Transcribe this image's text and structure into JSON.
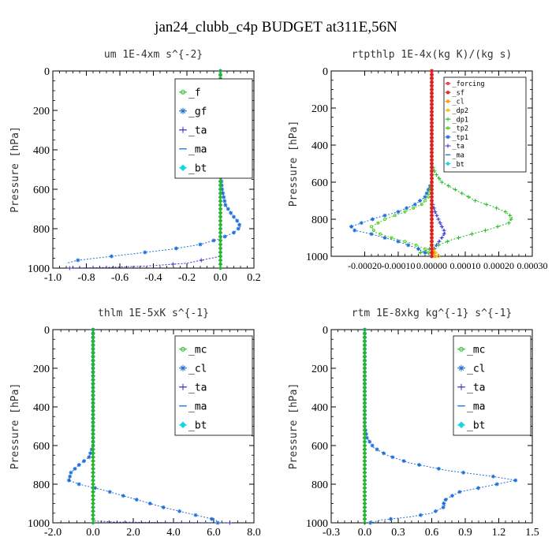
{
  "figure_title": "jan24_clubb_c4p  BUDGET at311E,56N",
  "colors": {
    "axes": "#000000",
    "green": "#22bb22",
    "blue": "#1e6fd9",
    "navy": "#3030c8",
    "cyan": "#17d5e0",
    "red": "#e02020",
    "orange": "#ff9900",
    "yellow": "#e6c000",
    "lime": "#4ccf1f"
  },
  "chart_data": [
    {
      "type": "line",
      "title": "um   1E-4xm s^{-2}",
      "ylabel": "Pressure [hPa]",
      "xlim": [
        -1.0,
        0.2
      ],
      "ylim": [
        1000,
        0
      ],
      "xticks": [
        -1.0,
        -0.8,
        -0.6,
        -0.4,
        -0.2,
        0.0,
        0.2
      ],
      "xtick_labels": [
        "-1.0",
        "-0.8",
        "-0.6",
        "-0.4",
        "-0.2",
        "0.0",
        "0.2"
      ],
      "yticks": [
        0,
        200,
        400,
        600,
        800,
        1000
      ],
      "ytick_labels": [
        "0",
        "200",
        "400",
        "600",
        "800",
        "1000"
      ],
      "legend_position": "top-right",
      "series": [
        {
          "name": "_f",
          "color": "#22bb22",
          "marker": "circle",
          "x": [
            0.0,
            0.0
          ],
          "y": [
            0,
            1000
          ]
        },
        {
          "name": "_gf",
          "color": "#1e6fd9",
          "marker": "star",
          "x": [
            0.0,
            0.0,
            0.0,
            0.0,
            0.0,
            0.0,
            0.01,
            0.03,
            0.07,
            0.1,
            0.12,
            0.08,
            0.0,
            -0.12,
            -0.3,
            -0.5,
            -0.7,
            -0.85,
            -0.92
          ],
          "y": [
            0,
            100,
            200,
            300,
            400,
            500,
            600,
            680,
            730,
            760,
            790,
            820,
            850,
            880,
            905,
            925,
            945,
            960,
            975
          ]
        },
        {
          "name": "_ta",
          "color": "#3030c8",
          "marker": "plus",
          "x": [
            0.0,
            0.0,
            0.0,
            0.0,
            -0.2,
            -0.45,
            -0.7,
            -0.9
          ],
          "y": [
            0,
            400,
            800,
            940,
            975,
            990,
            997,
            1000
          ]
        },
        {
          "name": "_ma",
          "color": "#1e6fd9",
          "marker": "dash",
          "x": [
            0.0,
            0.0
          ],
          "y": [
            0,
            1000
          ]
        },
        {
          "name": "_bt",
          "color": "#17d5e0",
          "marker": "diamond",
          "x": [
            0.0,
            0.0
          ],
          "y": [
            0,
            1000
          ]
        }
      ]
    },
    {
      "type": "line",
      "title": "rtpthlp   1E-4x(kg K)/(kg s)",
      "ylabel": "Pressure [hPa]",
      "xlim": [
        -0.0003,
        0.0003
      ],
      "ylim": [
        1000,
        0
      ],
      "xticks": [
        -0.0002,
        -0.0001,
        0.0,
        0.0001,
        0.0002,
        0.0003
      ],
      "xtick_labels": [
        "-0.00020",
        "-0.00010",
        "0.00000",
        "0.00010",
        "0.00020",
        "0.00030"
      ],
      "yticks": [
        0,
        200,
        400,
        600,
        800,
        1000
      ],
      "ytick_labels": [
        "0",
        "200",
        "400",
        "600",
        "800",
        "1000"
      ],
      "legend_position": "top-right",
      "series": [
        {
          "name": "_forcing",
          "color": "#e02020",
          "marker": "circle",
          "x": [
            0.0,
            0.0
          ],
          "y": [
            0,
            1000
          ]
        },
        {
          "name": "_sf",
          "color": "#e02020",
          "marker": "star",
          "x": [
            0.0,
            0.0
          ],
          "y": [
            0,
            1000
          ]
        },
        {
          "name": "_cl",
          "color": "#ff9900",
          "marker": "star",
          "x": [
            0.0,
            0.0,
            1e-05
          ],
          "y": [
            0,
            950,
            1000
          ]
        },
        {
          "name": "_dp2",
          "color": "#e6c000",
          "marker": "circle",
          "x": [
            0.0,
            0.0,
            2e-05
          ],
          "y": [
            0,
            950,
            1000
          ]
        },
        {
          "name": "_dp1",
          "color": "#22bb22",
          "marker": "plus",
          "x": [
            0.0,
            0.0,
            1e-05,
            3e-05,
            8e-05,
            0.00013,
            0.00018,
            0.00022,
            0.00024,
            0.00023,
            0.00018,
            0.00012,
            6e-05,
            2e-05,
            -4e-05
          ],
          "y": [
            0,
            500,
            550,
            600,
            650,
            700,
            730,
            760,
            790,
            820,
            850,
            880,
            910,
            940,
            985
          ]
        },
        {
          "name": "_tp2",
          "color": "#4ccf1f",
          "marker": "circle",
          "x": [
            0.0,
            0.0,
            -1e-05,
            -3e-05,
            -8e-05,
            -0.00014,
            -0.00018,
            -0.00017,
            -0.00012,
            -6e-05,
            -2e-05,
            0.0
          ],
          "y": [
            0,
            600,
            680,
            720,
            760,
            800,
            840,
            870,
            900,
            930,
            960,
            1000
          ]
        },
        {
          "name": "_tp1",
          "color": "#1e6fd9",
          "marker": "star",
          "x": [
            0.0,
            0.0,
            -2e-05,
            -5e-05,
            -0.0001,
            -0.00016,
            -0.00021,
            -0.00024,
            -0.00023,
            -0.00018,
            -0.0001,
            -4e-05,
            0.0
          ],
          "y": [
            0,
            600,
            680,
            720,
            760,
            790,
            820,
            840,
            860,
            880,
            920,
            960,
            1000
          ]
        },
        {
          "name": "_ta",
          "color": "#3030c8",
          "marker": "plus",
          "x": [
            0.0,
            0.0,
            1e-05,
            2e-05,
            3e-05,
            4e-05,
            3e-05,
            1e-05,
            0.0
          ],
          "y": [
            0,
            700,
            760,
            800,
            840,
            870,
            900,
            950,
            1000
          ]
        },
        {
          "name": "_ma",
          "color": "#1e6fd9",
          "marker": "dash",
          "x": [
            0.0,
            0.0
          ],
          "y": [
            0,
            1000
          ]
        },
        {
          "name": "_bt",
          "color": "#17d5e0",
          "marker": "diamond",
          "x": [
            0.0,
            0.0
          ],
          "y": [
            0,
            1000
          ]
        }
      ]
    },
    {
      "type": "line",
      "title": "thlm   1E-5xK s^{-1}",
      "ylabel": "Pressure [hPa]",
      "xlim": [
        -2.0,
        8.0
      ],
      "ylim": [
        1000,
        0
      ],
      "xticks": [
        -2.0,
        0.0,
        2.0,
        4.0,
        6.0,
        8.0
      ],
      "xtick_labels": [
        "-2.0",
        "0.0",
        "2.0",
        "4.0",
        "6.0",
        "8.0"
      ],
      "yticks": [
        0,
        200,
        400,
        600,
        800,
        1000
      ],
      "ytick_labels": [
        "0",
        "200",
        "400",
        "600",
        "800",
        "1000"
      ],
      "legend_position": "top-right",
      "series": [
        {
          "name": "_mc",
          "color": "#22bb22",
          "marker": "circle",
          "x": [
            0.0,
            0.0
          ],
          "y": [
            0,
            1000
          ]
        },
        {
          "name": "_cl",
          "color": "#1e6fd9",
          "marker": "star",
          "x": [
            0.0,
            0.0,
            -0.2,
            -0.7,
            -1.1,
            -1.2,
            -0.7,
            0.5,
            1.5,
            2.5,
            3.5,
            4.5,
            5.5,
            6.1,
            6.2
          ],
          "y": [
            0,
            600,
            660,
            700,
            740,
            780,
            800,
            830,
            860,
            890,
            920,
            945,
            970,
            985,
            1000
          ]
        },
        {
          "name": "_ta",
          "color": "#3030c8",
          "marker": "plus",
          "x": [
            0.0,
            0.0,
            1.0,
            3.0,
            5.0,
            6.8
          ],
          "y": [
            0,
            990,
            996,
            998,
            999,
            1000
          ]
        },
        {
          "name": "_ma",
          "color": "#1e6fd9",
          "marker": "dash",
          "x": [
            0.0,
            0.0
          ],
          "y": [
            0,
            1000
          ]
        },
        {
          "name": "_bt",
          "color": "#17d5e0",
          "marker": "diamond",
          "x": [
            0.0,
            0.0
          ],
          "y": [
            0,
            1000
          ]
        }
      ]
    },
    {
      "type": "line",
      "title": "rtm   1E-8xkg kg^{-1} s^{-1}",
      "ylabel": "Pressure [hPa]",
      "xlim": [
        -0.3,
        1.5
      ],
      "ylim": [
        1000,
        0
      ],
      "xticks": [
        -0.3,
        0.0,
        0.3,
        0.6,
        0.9,
        1.2,
        1.5
      ],
      "xtick_labels": [
        "-0.3",
        "0.0",
        "0.3",
        "0.6",
        "0.9",
        "1.2",
        "1.5"
      ],
      "yticks": [
        0,
        200,
        400,
        600,
        800,
        1000
      ],
      "ytick_labels": [
        "0",
        "200",
        "400",
        "600",
        "800",
        "1000"
      ],
      "legend_position": "top-right",
      "series": [
        {
          "name": "_mc",
          "color": "#22bb22",
          "marker": "circle",
          "x": [
            0.0,
            0.0
          ],
          "y": [
            0,
            1000
          ]
        },
        {
          "name": "_cl",
          "color": "#1e6fd9",
          "marker": "star",
          "x": [
            0.0,
            0.0,
            0.02,
            0.08,
            0.2,
            0.4,
            0.75,
            1.15,
            1.35,
            1.1,
            0.85,
            0.75,
            0.7,
            0.72,
            0.6,
            0.4,
            0.15,
            0.05
          ],
          "y": [
            0,
            500,
            560,
            610,
            650,
            690,
            730,
            760,
            780,
            810,
            840,
            870,
            890,
            915,
            950,
            970,
            985,
            1000
          ]
        },
        {
          "name": "_ta",
          "color": "#3030c8",
          "marker": "plus",
          "x": [
            0.0,
            0.0
          ],
          "y": [
            0,
            1000
          ]
        },
        {
          "name": "_ma",
          "color": "#1e6fd9",
          "marker": "dash",
          "x": [
            0.0,
            0.0
          ],
          "y": [
            0,
            1000
          ]
        },
        {
          "name": "_bt",
          "color": "#17d5e0",
          "marker": "diamond",
          "x": [
            0.0,
            0.0
          ],
          "y": [
            0,
            1000
          ]
        }
      ]
    }
  ]
}
